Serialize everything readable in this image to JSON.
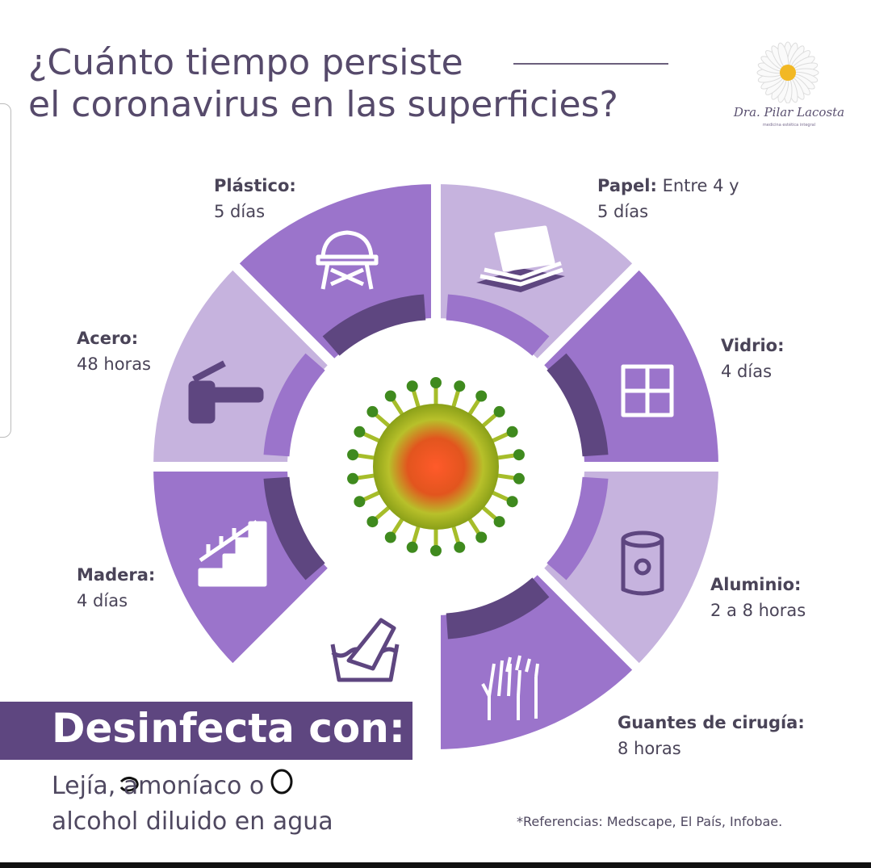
{
  "title": {
    "line1": "¿Cuánto tiempo persiste",
    "line2": "el coronavirus en las superficies?"
  },
  "logo": {
    "name": "Dra. Pilar Lacosta",
    "subtitle": "medicina estética integral"
  },
  "colors": {
    "medium": "#9b74cb",
    "light": "#c6b3de",
    "dark": "#5e4680",
    "text": "#4a4458"
  },
  "segments": [
    {
      "material": "Papel:",
      "time": "Entre 4 y 5 días",
      "shade": "light",
      "icon": "paper-stack-icon"
    },
    {
      "material": "Vidrio:",
      "time": "4 días",
      "shade": "medium",
      "icon": "window-icon"
    },
    {
      "material": "Aluminio:",
      "time": "2 a 8 horas",
      "shade": "light",
      "icon": "can-icon"
    },
    {
      "material": "Guantes de cirugía:",
      "time": "8 horas",
      "shade": "medium",
      "icon": "gloves-icon"
    },
    {
      "material": "Madera:",
      "time": "4 días",
      "shade": "medium",
      "icon": "stairs-icon"
    },
    {
      "material": "Acero:",
      "time": "48 horas",
      "shade": "light",
      "icon": "faucet-icon"
    },
    {
      "material": "Plástico:",
      "time": "5 días",
      "shade": "medium",
      "icon": "chair-icon"
    }
  ],
  "disinfect": {
    "heading": "Desinfecta con:",
    "line1": "Lejía, amoníaco o",
    "line2": "alcohol diluido en agua"
  },
  "references": "*Referencias: Medscape, El País, Infobae."
}
